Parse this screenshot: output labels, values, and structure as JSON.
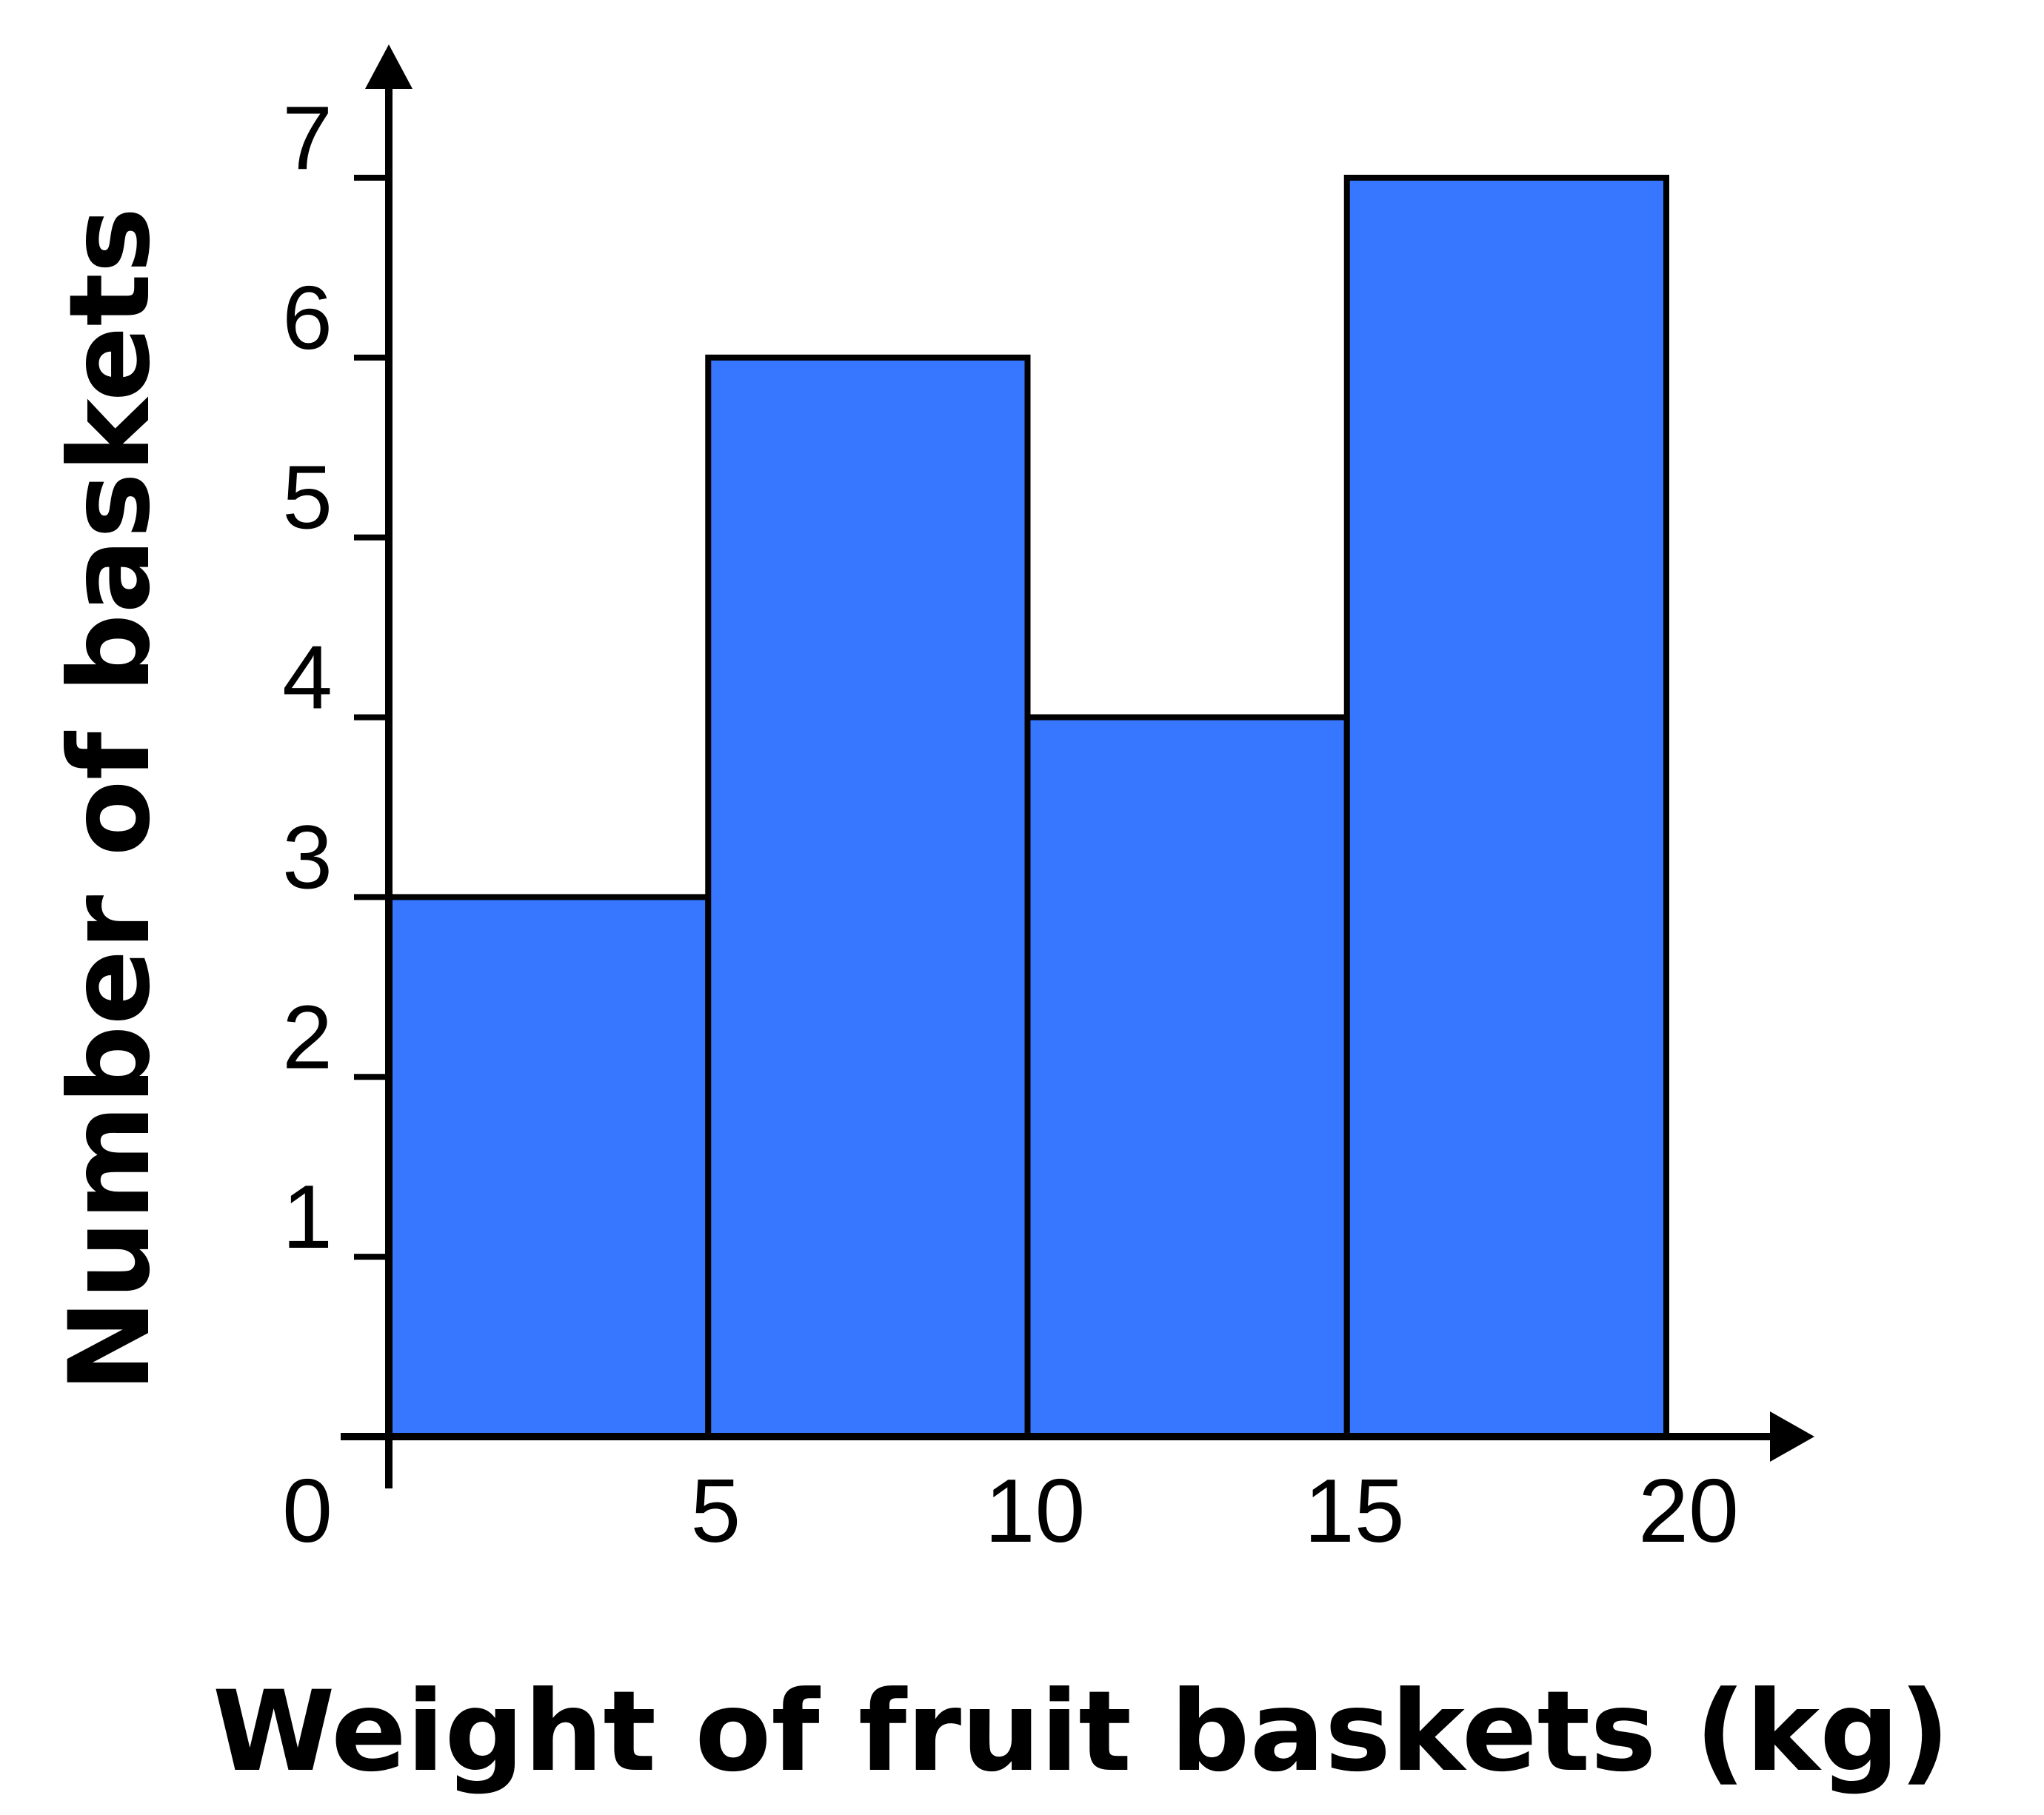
{
  "chart_data": {
    "type": "bar",
    "subtype": "histogram",
    "bins": [
      {
        "start": 0,
        "end": 5,
        "value": 3
      },
      {
        "start": 5,
        "end": 10,
        "value": 6
      },
      {
        "start": 10,
        "end": 15,
        "value": 4
      },
      {
        "start": 15,
        "end": 20,
        "value": 7
      }
    ],
    "xticks": [
      0,
      5,
      10,
      15,
      20
    ],
    "yticks": [
      1,
      2,
      3,
      4,
      5,
      6,
      7
    ],
    "xlabel": "Weight of fruit baskets (kg)",
    "ylabel": "Number of baskets",
    "xlim": [
      0,
      20
    ],
    "ylim": [
      0,
      7
    ],
    "grid": false,
    "colors": {
      "bar_fill": "#3777FF",
      "bar_stroke": "#000000",
      "axis": "#000000"
    }
  }
}
